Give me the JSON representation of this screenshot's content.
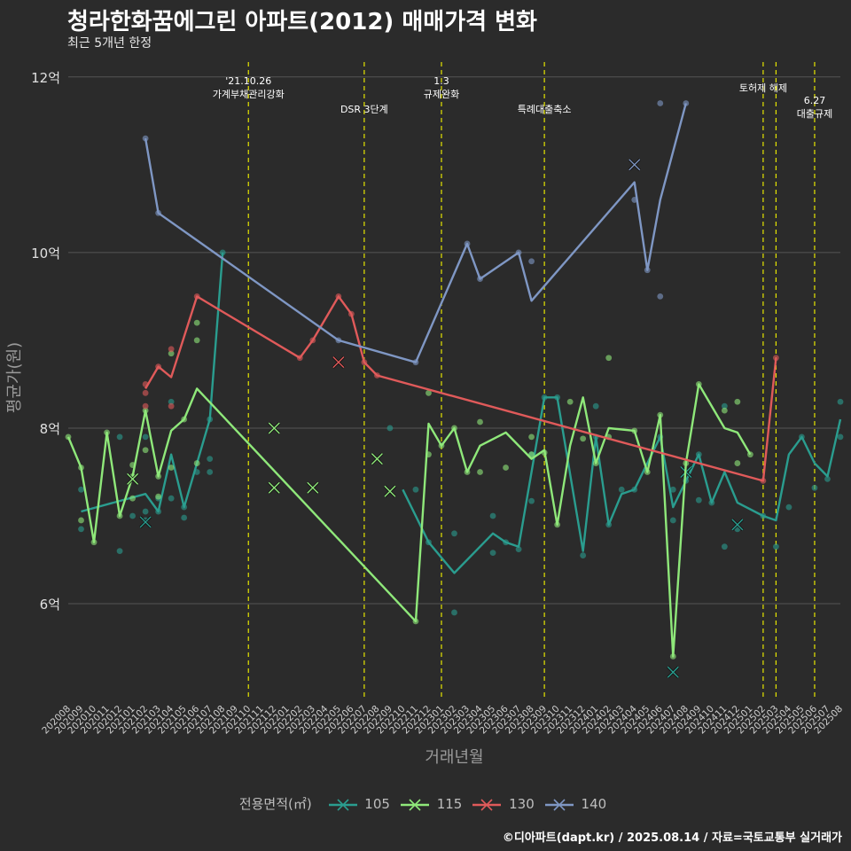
{
  "title": "청라한화꿈에그린 아파트(2012) 매매가격 변화",
  "subtitle": "최근 5개년 한정",
  "caption": "©디아파트(dapt.kr) / 2025.08.14 / 자료=국토교통부 실거래가",
  "legend": {
    "title": "전용면적(㎡)",
    "items": [
      {
        "label": "105",
        "color": "#2a9d8f"
      },
      {
        "label": "115",
        "color": "#8fe87a"
      },
      {
        "label": "130",
        "color": "#e05a5a"
      },
      {
        "label": "140",
        "color": "#7f97c4"
      }
    ]
  },
  "chart_data": {
    "type": "line",
    "xlabel": "거래년월",
    "ylabel": "평균가(원)",
    "ylim": [
      4.9,
      12.25
    ],
    "yticks": [
      6,
      8,
      10,
      12
    ],
    "ytick_labels": [
      "6억",
      "8억",
      "10억",
      "12억"
    ],
    "categories": [
      "202008",
      "202009",
      "202010",
      "202011",
      "202012",
      "202101",
      "202102",
      "202103",
      "202104",
      "202105",
      "202106",
      "202107",
      "202108",
      "202109",
      "202110",
      "202111",
      "202112",
      "202201",
      "202202",
      "202203",
      "202204",
      "202205",
      "202206",
      "202207",
      "202208",
      "202209",
      "202210",
      "202211",
      "202212",
      "202301",
      "202302",
      "202303",
      "202304",
      "202305",
      "202306",
      "202307",
      "202308",
      "202309",
      "202310",
      "202311",
      "202312",
      "202401",
      "202402",
      "202403",
      "202404",
      "202405",
      "202406",
      "202407",
      "202408",
      "202409",
      "202410",
      "202411",
      "202412",
      "202501",
      "202502",
      "202503",
      "202504",
      "202505",
      "202506",
      "202507",
      "202508"
    ],
    "grid": true,
    "events": [
      {
        "x": "202110",
        "label_lines": [
          "'21.10.26",
          "가계부채관리강화"
        ]
      },
      {
        "x": "202207",
        "label_lines": [
          "DSR 3단계"
        ]
      },
      {
        "x": "202301",
        "label_lines": [
          "1.3",
          "규제완화"
        ]
      },
      {
        "x": "202309",
        "label_lines": [
          "특례대출축소"
        ]
      },
      {
        "x": "202502",
        "label_lines": [
          "토허제 해제"
        ]
      },
      {
        "x": "202503",
        "label_lines": []
      },
      {
        "x": "202506",
        "label_lines": [
          "6.27",
          "대출규제"
        ]
      }
    ],
    "series": [
      {
        "name": "105",
        "color": "#2a9d8f",
        "line": [
          [
            "202009",
            7.05
          ],
          [
            "202102",
            7.25
          ],
          [
            "202103",
            7.05
          ],
          [
            "202104",
            7.7
          ],
          [
            "202105",
            7.1
          ],
          [
            "202107",
            8.1
          ],
          [
            "202108",
            10.0
          ],
          [
            "202210",
            null
          ],
          [
            "202210",
            7.3
          ],
          [
            "202211",
            7.0
          ],
          [
            "202212",
            6.7
          ],
          [
            "202302",
            6.35
          ],
          [
            "202305",
            6.8
          ],
          [
            "202306",
            6.7
          ],
          [
            "202307",
            6.65
          ],
          [
            "202309",
            8.35
          ],
          [
            "202310",
            8.35
          ],
          [
            "202312",
            6.6
          ],
          [
            "202401",
            7.9
          ],
          [
            "202402",
            6.9
          ],
          [
            "202403",
            7.25
          ],
          [
            "202404",
            7.3
          ],
          [
            "202406",
            7.9
          ],
          [
            "202407",
            7.1
          ],
          [
            "202408",
            7.4
          ],
          [
            "202409",
            7.7
          ],
          [
            "202410",
            7.15
          ],
          [
            "202411",
            7.5
          ],
          [
            "202412",
            7.15
          ],
          [
            "202502",
            7.0
          ],
          [
            "202503",
            6.95
          ],
          [
            "202504",
            7.7
          ],
          [
            "202505",
            7.9
          ],
          [
            "202506",
            7.6
          ],
          [
            "202507",
            7.45
          ],
          [
            "202508",
            8.1
          ]
        ],
        "points": [
          [
            "202009",
            6.85
          ],
          [
            "202009",
            7.3
          ],
          [
            "202012",
            6.6
          ],
          [
            "202012",
            7.9
          ],
          [
            "202101",
            7.0
          ],
          [
            "202102",
            7.9
          ],
          [
            "202102",
            6.95
          ],
          [
            "202102",
            7.05
          ],
          [
            "202103",
            7.05
          ],
          [
            "202103",
            7.2
          ],
          [
            "202104",
            8.3
          ],
          [
            "202104",
            7.2
          ],
          [
            "202105",
            7.1
          ],
          [
            "202105",
            6.98
          ],
          [
            "202106",
            7.5
          ],
          [
            "202107",
            7.5
          ],
          [
            "202107",
            7.65
          ],
          [
            "202107",
            8.1
          ],
          [
            "202108",
            10.0
          ],
          [
            "202209",
            8.0
          ],
          [
            "202211",
            7.3
          ],
          [
            "202212",
            6.7
          ],
          [
            "202302",
            6.8
          ],
          [
            "202302",
            5.9
          ],
          [
            "202305",
            7.0
          ],
          [
            "202305",
            6.58
          ],
          [
            "202306",
            6.7
          ],
          [
            "202307",
            6.62
          ],
          [
            "202308",
            7.17
          ],
          [
            "202308",
            7.7
          ],
          [
            "202309",
            8.35
          ],
          [
            "202310",
            8.35
          ],
          [
            "202312",
            6.55
          ],
          [
            "202401",
            8.25
          ],
          [
            "202401",
            7.9
          ],
          [
            "202402",
            6.9
          ],
          [
            "202403",
            7.3
          ],
          [
            "202404",
            7.3
          ],
          [
            "202406",
            7.9
          ],
          [
            "202407",
            6.95
          ],
          [
            "202407",
            7.3
          ],
          [
            "202408",
            7.4
          ],
          [
            "202409",
            7.7
          ],
          [
            "202409",
            7.18
          ],
          [
            "202410",
            7.15
          ],
          [
            "202411",
            6.65
          ],
          [
            "202411",
            8.25
          ],
          [
            "202412",
            6.85
          ],
          [
            "202502",
            7.0
          ],
          [
            "202503",
            6.65
          ],
          [
            "202504",
            7.1
          ],
          [
            "202505",
            7.9
          ],
          [
            "202506",
            7.32
          ],
          [
            "202507",
            7.42
          ],
          [
            "202508",
            8.3
          ],
          [
            "202508",
            7.9
          ]
        ],
        "cancelled": [
          [
            "202102",
            6.93
          ],
          [
            "202407",
            5.22
          ],
          [
            "202408",
            7.5
          ],
          [
            "202412",
            6.9
          ]
        ]
      },
      {
        "name": "115",
        "color": "#8fe87a",
        "line": [
          [
            "202008",
            7.9
          ],
          [
            "202009",
            7.55
          ],
          [
            "202010",
            6.7
          ],
          [
            "202011",
            7.95
          ],
          [
            "202012",
            7.0
          ],
          [
            "202101",
            7.45
          ],
          [
            "202102",
            8.2
          ],
          [
            "202103",
            7.45
          ],
          [
            "202104",
            7.97
          ],
          [
            "202105",
            8.1
          ],
          [
            "202106",
            8.45
          ],
          [
            "202211",
            5.8
          ],
          [
            "202212",
            8.05
          ],
          [
            "202301",
            7.8
          ],
          [
            "202302",
            8.0
          ],
          [
            "202303",
            7.5
          ],
          [
            "202304",
            7.8
          ],
          [
            "202306",
            7.95
          ],
          [
            "202308",
            7.65
          ],
          [
            "202309",
            7.75
          ],
          [
            "202310",
            6.9
          ],
          [
            "202311",
            7.8
          ],
          [
            "202312",
            8.35
          ],
          [
            "202401",
            7.6
          ],
          [
            "202402",
            8.0
          ],
          [
            "202404",
            7.97
          ],
          [
            "202405",
            7.5
          ],
          [
            "202406",
            8.15
          ],
          [
            "202407",
            5.4
          ],
          [
            "202408",
            7.6
          ],
          [
            "202409",
            8.5
          ],
          [
            "202411",
            8.0
          ],
          [
            "202412",
            7.95
          ],
          [
            "202501",
            7.7
          ]
        ],
        "points": [
          [
            "202008",
            7.9
          ],
          [
            "202009",
            7.55
          ],
          [
            "202009",
            6.95
          ],
          [
            "202010",
            6.7
          ],
          [
            "202011",
            7.95
          ],
          [
            "202012",
            7.0
          ],
          [
            "202101",
            7.45
          ],
          [
            "202101",
            7.58
          ],
          [
            "202101",
            7.2
          ],
          [
            "202102",
            8.2
          ],
          [
            "202102",
            7.75
          ],
          [
            "202103",
            7.45
          ],
          [
            "202103",
            7.22
          ],
          [
            "202104",
            7.55
          ],
          [
            "202104",
            8.85
          ],
          [
            "202105",
            8.1
          ],
          [
            "202106",
            9.2
          ],
          [
            "202106",
            9.0
          ],
          [
            "202106",
            7.6
          ],
          [
            "202211",
            5.8
          ],
          [
            "202212",
            8.4
          ],
          [
            "202212",
            7.7
          ],
          [
            "202301",
            7.8
          ],
          [
            "202302",
            8.0
          ],
          [
            "202303",
            7.5
          ],
          [
            "202304",
            8.07
          ],
          [
            "202304",
            7.5
          ],
          [
            "202306",
            7.55
          ],
          [
            "202308",
            7.9
          ],
          [
            "202308",
            7.7
          ],
          [
            "202309",
            7.72
          ],
          [
            "202310",
            6.9
          ],
          [
            "202311",
            8.3
          ],
          [
            "202312",
            7.88
          ],
          [
            "202401",
            7.6
          ],
          [
            "202402",
            8.8
          ],
          [
            "202402",
            7.9
          ],
          [
            "202404",
            7.97
          ],
          [
            "202405",
            7.5
          ],
          [
            "202406",
            8.15
          ],
          [
            "202407",
            5.4
          ],
          [
            "202408",
            7.6
          ],
          [
            "202409",
            8.5
          ],
          [
            "202411",
            8.2
          ],
          [
            "202412",
            8.3
          ],
          [
            "202412",
            7.6
          ],
          [
            "202501",
            7.7
          ]
        ],
        "cancelled": [
          [
            "202101",
            7.42
          ],
          [
            "202112",
            8.0
          ],
          [
            "202112",
            7.32
          ],
          [
            "202203",
            7.32
          ],
          [
            "202208",
            7.65
          ],
          [
            "202209",
            7.28
          ]
        ]
      },
      {
        "name": "130",
        "color": "#e05a5a",
        "line": [
          [
            "202102",
            8.45
          ],
          [
            "202103",
            8.7
          ],
          [
            "202104",
            8.58
          ],
          [
            "202106",
            9.5
          ],
          [
            "202202",
            8.8
          ],
          [
            "202203",
            9.0
          ],
          [
            "202205",
            9.5
          ],
          [
            "202206",
            9.3
          ],
          [
            "202207",
            8.75
          ],
          [
            "202208",
            8.6
          ],
          [
            "202502",
            7.4
          ],
          [
            "202503",
            8.8
          ]
        ],
        "points": [
          [
            "202102",
            8.5
          ],
          [
            "202102",
            8.4
          ],
          [
            "202102",
            8.25
          ],
          [
            "202103",
            8.7
          ],
          [
            "202104",
            8.9
          ],
          [
            "202104",
            8.25
          ],
          [
            "202106",
            9.5
          ],
          [
            "202202",
            8.8
          ],
          [
            "202203",
            9.0
          ],
          [
            "202205",
            9.5
          ],
          [
            "202206",
            9.3
          ],
          [
            "202207",
            8.75
          ],
          [
            "202208",
            8.6
          ],
          [
            "202502",
            7.4
          ],
          [
            "202503",
            8.8
          ]
        ],
        "cancelled": [
          [
            "202205",
            8.75
          ]
        ]
      },
      {
        "name": "140",
        "color": "#7f97c4",
        "line": [
          [
            "202102",
            11.3
          ],
          [
            "202103",
            10.45
          ],
          [
            "202205",
            9.0
          ],
          [
            "202211",
            8.75
          ],
          [
            "202303",
            10.1
          ],
          [
            "202304",
            9.7
          ],
          [
            "202307",
            10.0
          ],
          [
            "202308",
            9.45
          ],
          [
            "202404",
            10.8
          ],
          [
            "202405",
            9.8
          ],
          [
            "202406",
            10.6
          ],
          [
            "202408",
            11.7
          ]
        ],
        "points": [
          [
            "202102",
            11.3
          ],
          [
            "202103",
            10.45
          ],
          [
            "202205",
            9.0
          ],
          [
            "202211",
            8.75
          ],
          [
            "202303",
            10.1
          ],
          [
            "202304",
            9.7
          ],
          [
            "202307",
            10.0
          ],
          [
            "202308",
            9.9
          ],
          [
            "202404",
            10.6
          ],
          [
            "202405",
            9.8
          ],
          [
            "202406",
            11.7
          ],
          [
            "202406",
            9.5
          ],
          [
            "202408",
            11.7
          ]
        ],
        "cancelled": [
          [
            "202404",
            11.0
          ]
        ]
      }
    ]
  }
}
